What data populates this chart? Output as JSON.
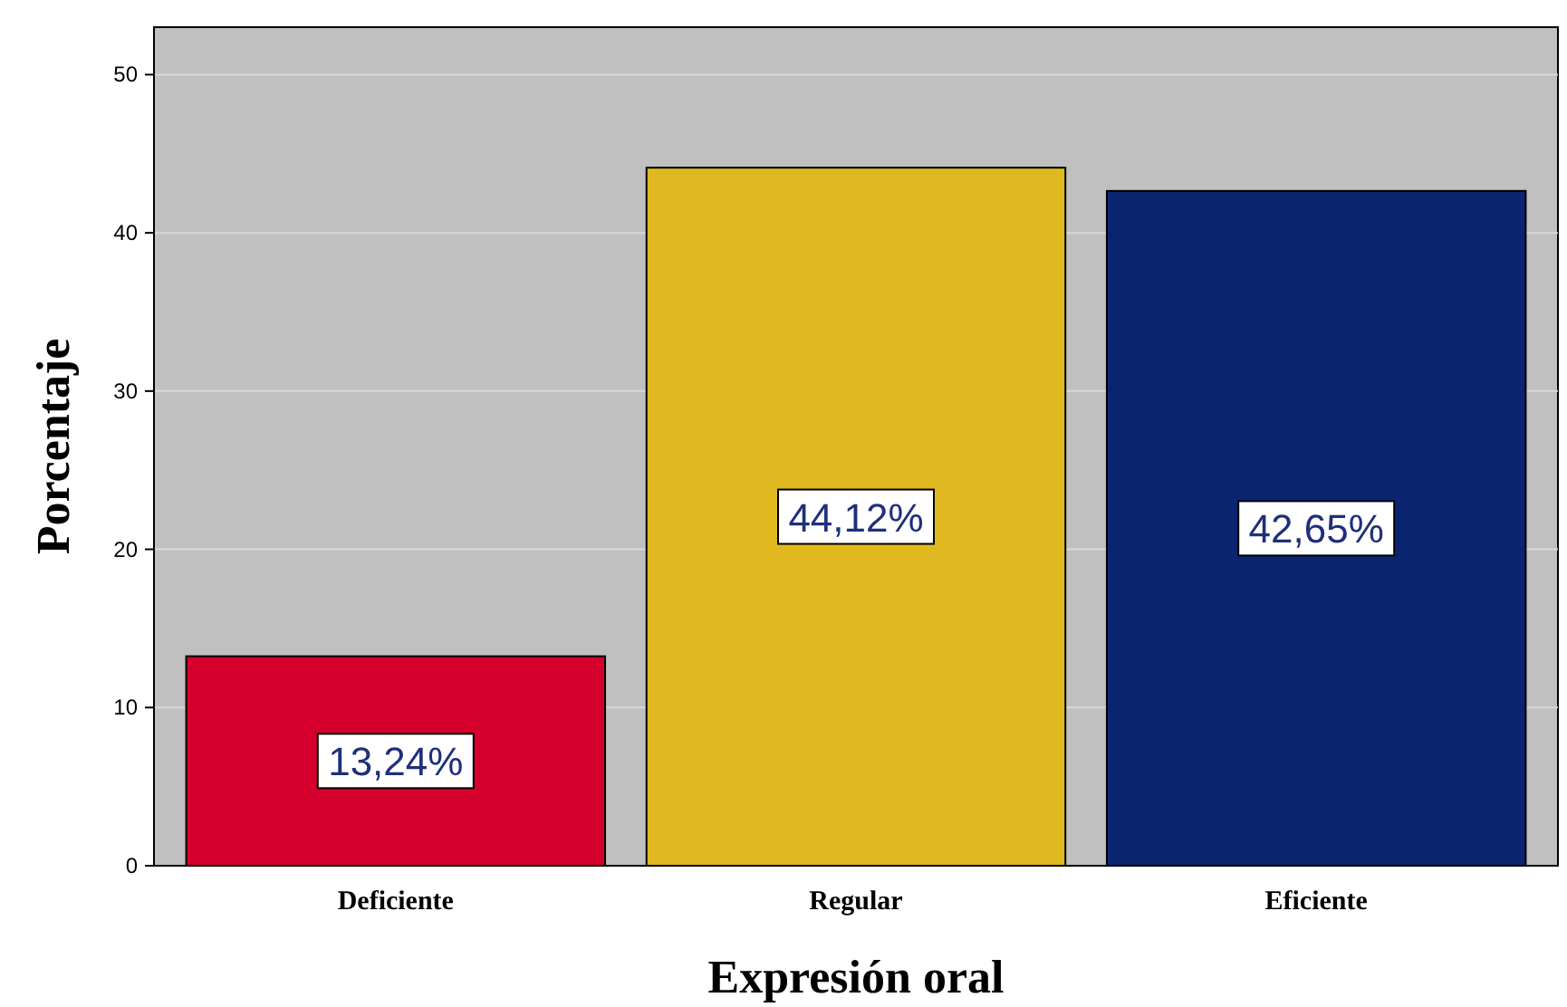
{
  "chart_data": {
    "type": "bar",
    "xlabel": "Expresión oral",
    "ylabel": "Porcentaje",
    "categories": [
      "Deficiente",
      "Regular",
      "Eficiente"
    ],
    "values": [
      13.24,
      44.12,
      42.65
    ],
    "colors": [
      "#d6002c",
      "#e0b820",
      "#0b2470"
    ],
    "value_labels": [
      "13,24%",
      "44,12%",
      "42,65%"
    ],
    "ylim": [
      0,
      53
    ],
    "yticks": [
      0,
      10,
      20,
      30,
      40,
      50
    ],
    "grid": "y"
  }
}
